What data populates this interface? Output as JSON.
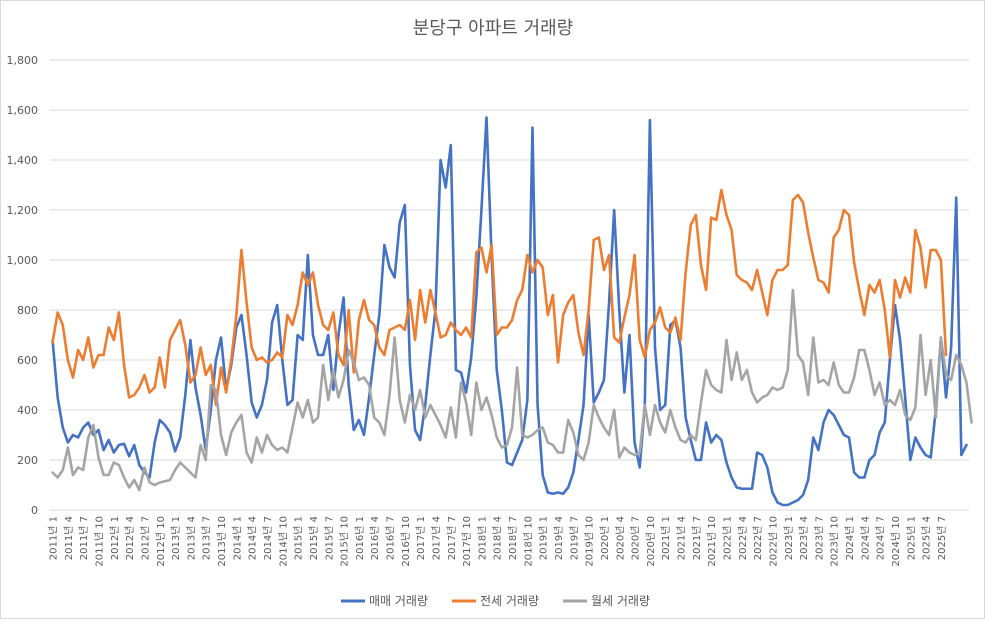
{
  "chart_data": {
    "type": "line",
    "title": "분당구 아파트 거래량",
    "ylim": [
      0,
      1800
    ],
    "yticks": [
      "0",
      "200",
      "400",
      "600",
      "800",
      "1,000",
      "1,200",
      "1,400",
      "1,600",
      "1,800"
    ],
    "grid": true,
    "legend_position": "bottom",
    "x_start": "2011-01",
    "tick_every_months": 3,
    "series": [
      {
        "name": "매매 거래량",
        "color": "#4472C4",
        "values": [
          680,
          450,
          330,
          270,
          300,
          290,
          330,
          350,
          300,
          320,
          240,
          280,
          230,
          260,
          265,
          215,
          260,
          180,
          150,
          130,
          270,
          360,
          340,
          310,
          235,
          290,
          460,
          680,
          490,
          380,
          240,
          400,
          600,
          690,
          480,
          580,
          730,
          780,
          620,
          430,
          370,
          420,
          520,
          750,
          820,
          600,
          420,
          440,
          700,
          680,
          1020,
          700,
          620,
          620,
          700,
          480,
          700,
          850,
          500,
          320,
          360,
          300,
          450,
          620,
          780,
          1060,
          970,
          930,
          1150,
          1220,
          580,
          320,
          280,
          420,
          620,
          800,
          1400,
          1290,
          1460,
          560,
          550,
          470,
          610,
          850,
          1200,
          1570,
          1010,
          560,
          400,
          190,
          180,
          230,
          280,
          440,
          1530,
          420,
          140,
          70,
          65,
          70,
          65,
          90,
          150,
          280,
          420,
          780,
          430,
          470,
          520,
          830,
          1200,
          800,
          470,
          700,
          270,
          170,
          420,
          1560,
          650,
          400,
          420,
          740,
          760,
          650,
          370,
          280,
          200,
          200,
          350,
          270,
          300,
          280,
          190,
          130,
          90,
          85,
          85,
          85,
          230,
          220,
          170,
          70,
          30,
          20,
          20,
          30,
          40,
          60,
          120,
          290,
          240,
          350,
          400,
          380,
          340,
          300,
          290,
          150,
          130,
          130,
          200,
          220,
          310,
          350,
          600,
          820,
          680,
          450,
          200,
          290,
          250,
          220,
          210,
          400,
          690,
          450,
          650,
          1250,
          220,
          260
        ]
      },
      {
        "name": "전세 거래량",
        "color": "#ED7D31",
        "values": [
          670,
          790,
          740,
          600,
          530,
          640,
          600,
          690,
          570,
          620,
          620,
          730,
          680,
          790,
          580,
          450,
          460,
          490,
          540,
          470,
          490,
          610,
          490,
          680,
          720,
          760,
          660,
          510,
          540,
          650,
          540,
          580,
          420,
          570,
          470,
          600,
          780,
          1040,
          830,
          650,
          600,
          610,
          590,
          600,
          630,
          610,
          780,
          740,
          820,
          950,
          900,
          950,
          820,
          740,
          720,
          790,
          620,
          580,
          800,
          550,
          760,
          840,
          760,
          740,
          650,
          620,
          720,
          730,
          740,
          720,
          840,
          680,
          880,
          750,
          880,
          790,
          690,
          700,
          750,
          720,
          700,
          730,
          690,
          1030,
          1050,
          950,
          1060,
          700,
          730,
          730,
          760,
          840,
          880,
          1020,
          950,
          1000,
          970,
          780,
          860,
          590,
          780,
          830,
          860,
          710,
          620,
          800,
          1080,
          1090,
          960,
          1020,
          690,
          670,
          770,
          860,
          1020,
          680,
          610,
          720,
          750,
          810,
          730,
          710,
          770,
          680,
          950,
          1140,
          1180,
          980,
          880,
          1170,
          1160,
          1280,
          1180,
          1120,
          940,
          920,
          910,
          880,
          960,
          870,
          780,
          920,
          960,
          960,
          980,
          1240,
          1260,
          1230,
          1110,
          1010,
          920,
          910,
          870,
          1090,
          1120,
          1200,
          1180,
          990,
          880,
          780,
          900,
          870,
          920,
          800,
          610,
          920,
          850,
          930,
          870,
          1120,
          1050,
          890,
          1040,
          1040,
          1000,
          620
        ]
      },
      {
        "name": "월세 거래량",
        "color": "#A5A5A5",
        "values": [
          150,
          130,
          160,
          250,
          140,
          170,
          160,
          290,
          340,
          210,
          140,
          140,
          190,
          180,
          130,
          90,
          120,
          80,
          170,
          110,
          100,
          110,
          115,
          120,
          160,
          190,
          170,
          150,
          130,
          260,
          200,
          500,
          480,
          300,
          220,
          310,
          350,
          380,
          230,
          190,
          290,
          230,
          300,
          260,
          240,
          250,
          230,
          330,
          430,
          370,
          440,
          350,
          370,
          580,
          440,
          560,
          450,
          520,
          640,
          590,
          520,
          530,
          500,
          370,
          350,
          300,
          460,
          690,
          440,
          350,
          460,
          400,
          480,
          370,
          420,
          380,
          340,
          290,
          410,
          290,
          510,
          430,
          300,
          510,
          400,
          450,
          380,
          290,
          250,
          260,
          330,
          570,
          300,
          290,
          300,
          320,
          330,
          270,
          260,
          230,
          230,
          360,
          310,
          220,
          200,
          270,
          420,
          370,
          330,
          300,
          400,
          210,
          250,
          230,
          220,
          230,
          420,
          300,
          420,
          350,
          310,
          400,
          330,
          280,
          270,
          300,
          280,
          430,
          560,
          500,
          480,
          470,
          680,
          520,
          630,
          520,
          560,
          470,
          430,
          450,
          460,
          490,
          480,
          490,
          560,
          880,
          620,
          590,
          460,
          690,
          510,
          520,
          500,
          590,
          500,
          470,
          470,
          530,
          640,
          640,
          560,
          460,
          510,
          420,
          440,
          420,
          480,
          380,
          360,
          410,
          700,
          460,
          600,
          370,
          690,
          540,
          520,
          620,
          580,
          510,
          350
        ]
      }
    ],
    "xtick_labels": [
      "2011년 1",
      "2011년 4",
      "2011년 7",
      "2011년 10",
      "2012년 1",
      "2012년 4",
      "2012년 7",
      "2012년 10",
      "2013년 1",
      "2013년 4",
      "2013년 7",
      "2013년 10",
      "2014년 1",
      "2014년 4",
      "2014년 7",
      "2014년 10",
      "2015년 1",
      "2015년 4",
      "2015년 7",
      "2015년 10",
      "2016년 1",
      "2016년 4",
      "2016년 7",
      "2016년 10",
      "2017년 1",
      "2017년 4",
      "2017년 7",
      "2017년 10",
      "2018년 1",
      "2018년 4",
      "2018년 7",
      "2018년 10",
      "2019년 1",
      "2019년 4",
      "2019년 7",
      "2019년 10",
      "2020년 1",
      "2020년 4",
      "2020년 7",
      "2020년 10",
      "2021년 1",
      "2021년 4",
      "2021년 7",
      "2021년 10",
      "2022년 1",
      "2022년 4",
      "2022년 7",
      "2022년 10",
      "2023년 1",
      "2023년 4",
      "2023년 7",
      "2023년 10",
      "2024년 1",
      "2024년 4",
      "2024년 7",
      "2024년 10",
      "2025년 1",
      "2025년 4",
      "2025년 7"
    ]
  }
}
